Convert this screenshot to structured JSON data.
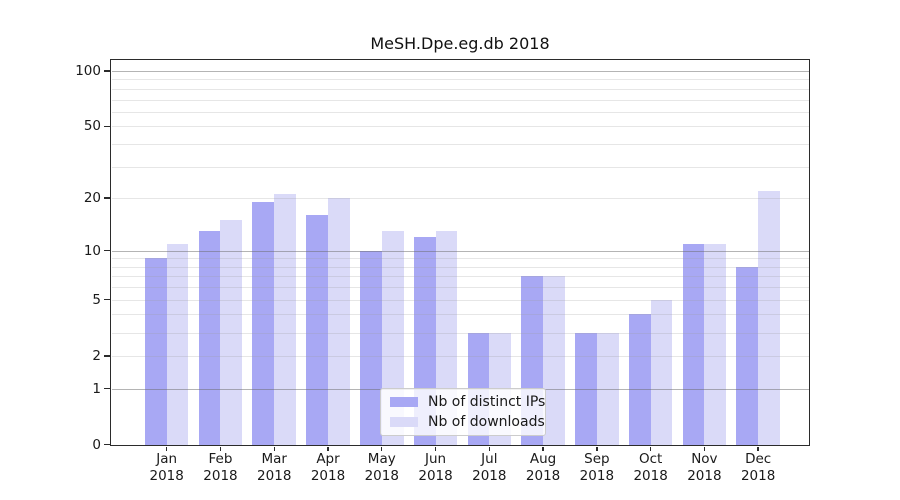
{
  "chart_data": {
    "type": "bar",
    "title": "MeSH.Dpe.eg.db 2018",
    "categories": [
      "Jan 2018",
      "Feb 2018",
      "Mar 2018",
      "Apr 2018",
      "May 2018",
      "Jun 2018",
      "Jul 2018",
      "Aug 2018",
      "Sep 2018",
      "Oct 2018",
      "Nov 2018",
      "Dec 2018"
    ],
    "series": [
      {
        "name": "Nb of distinct IPs",
        "color": "#a8a8f4",
        "values": [
          9,
          13,
          19,
          16,
          10,
          12,
          3,
          7,
          3,
          4,
          11,
          8
        ]
      },
      {
        "name": "Nb of downloads",
        "color": "#dadaf8",
        "values": [
          11,
          15,
          21,
          20,
          13,
          13,
          3,
          7,
          3,
          5,
          11,
          22
        ]
      }
    ],
    "yscale": "log1p",
    "ylim": [
      0,
      100
    ],
    "yticks": [
      100,
      50,
      20,
      10,
      5,
      2,
      1,
      0
    ],
    "grid": true,
    "legend_position": "lower-center",
    "colors": {
      "spine": "#2b2b2b",
      "major_grid": "#9a9a9a",
      "minor_grid": "#e4e4e4",
      "background": "#ffffff"
    }
  }
}
